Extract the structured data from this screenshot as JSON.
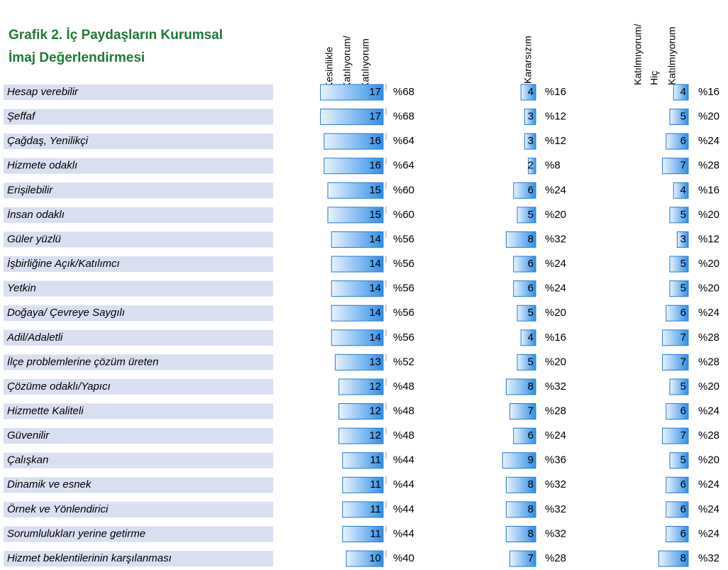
{
  "header": {
    "title": [
      "Grafik 2. İç Paydaşların Kurumsal",
      "İmaj Değerlendirmesi"
    ]
  },
  "table": {
    "columns": [
      [
        "Kesinlikle",
        "Katılıyorum/",
        "Katılıyorum"
      ],
      [
        "Kararsızım"
      ],
      [
        "Katılmıyorum/",
        "Hiç",
        "Katılmıyorum"
      ]
    ],
    "rows": [
      [
        "Hesap verebilir",
        17,
        "%68",
        4,
        "%16",
        4,
        "%16"
      ],
      [
        "Şeffaf",
        17,
        "%68",
        3,
        "%12",
        5,
        "%20"
      ],
      [
        "Çağdaş, Yenilikçi",
        16,
        "%64",
        3,
        "%12",
        6,
        "%24"
      ],
      [
        "Hizmete odaklı",
        16,
        "%64",
        2,
        "%8",
        7,
        "%28"
      ],
      [
        "Erişilebilir",
        15,
        "%60",
        6,
        "%24",
        4,
        "%16"
      ],
      [
        "İnsan odaklı",
        15,
        "%60",
        5,
        "%20",
        5,
        "%20"
      ],
      [
        "Güler yüzlü",
        14,
        "%56",
        8,
        "%32",
        3,
        "%12"
      ],
      [
        "İşbirliğine Açık/Katılımcı",
        14,
        "%56",
        6,
        "%24",
        5,
        "%20"
      ],
      [
        "Yetkin",
        14,
        "%56",
        6,
        "%24",
        5,
        "%20"
      ],
      [
        "Doğaya/ Çevreye Saygılı",
        14,
        "%56",
        5,
        "%20",
        6,
        "%24"
      ],
      [
        "Adil/Adaletli",
        14,
        "%56",
        4,
        "%16",
        7,
        "%28"
      ],
      [
        "İlçe problemlerine çözüm üreten",
        13,
        "%52",
        5,
        "%20",
        7,
        "%28"
      ],
      [
        "Çözüme odaklı/Yapıcı",
        12,
        "%48",
        8,
        "%32",
        5,
        "%20"
      ],
      [
        "Hizmette Kaliteli",
        12,
        "%48",
        7,
        "%28",
        6,
        "%24"
      ],
      [
        "Güvenilir",
        12,
        "%48",
        6,
        "%24",
        7,
        "%28"
      ],
      [
        "Çalışkan",
        11,
        "%44",
        9,
        "%36",
        5,
        "%20"
      ],
      [
        "Dinamik ve esnek",
        11,
        "%44",
        8,
        "%32",
        6,
        "%24"
      ],
      [
        "Örnek ve Yönlendirici",
        11,
        "%44",
        8,
        "%32",
        6,
        "%24"
      ],
      [
        "Sorumlulukları yerine getirme",
        11,
        "%44",
        8,
        "%32",
        6,
        "%24"
      ],
      [
        "Hizmet beklentilerinin karşılanması",
        10,
        "%40",
        7,
        "%28",
        8,
        "%32"
      ]
    ]
  }
}
